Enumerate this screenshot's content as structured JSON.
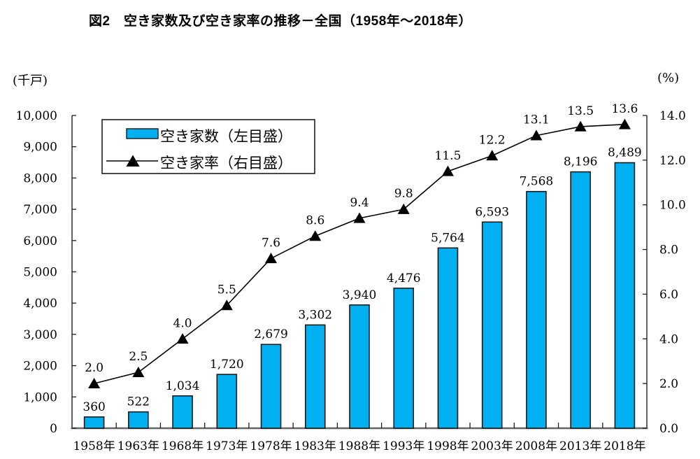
{
  "title": "図2　空き家数及び空き家率の推移－全国（1958年～2018年）",
  "left_axis": {
    "unit": "(千戸)",
    "tick_values": [
      0,
      1000,
      2000,
      3000,
      4000,
      5000,
      6000,
      7000,
      8000,
      9000,
      10000
    ],
    "tick_labels": [
      "0",
      "1,000",
      "2,000",
      "3,000",
      "4,000",
      "5,000",
      "6,000",
      "7,000",
      "8,000",
      "9,000",
      "10,000"
    ]
  },
  "right_axis": {
    "unit": "(%)",
    "tick_values": [
      0,
      2,
      4,
      6,
      8,
      10,
      12,
      14
    ],
    "tick_labels": [
      "0.0",
      "2.0",
      "4.0",
      "6.0",
      "8.0",
      "10.0",
      "12.0",
      "14.0"
    ]
  },
  "legend": {
    "items": [
      {
        "label": "空き家数（左目盛）",
        "type": "bar"
      },
      {
        "label": "空き家率（右目盛）",
        "type": "line-triangle"
      }
    ]
  },
  "colors": {
    "bar": "#00B0F0",
    "bar_border": "#1a1a1a",
    "line": "#000000"
  },
  "chart_data": {
    "type": "bar+line combo",
    "title": "図2　空き家数及び空き家率の推移－全国（1958年～2018年）",
    "categories": [
      "1958年",
      "1963年",
      "1968年",
      "1973年",
      "1978年",
      "1983年",
      "1988年",
      "1993年",
      "1998年",
      "2003年",
      "2008年",
      "2013年",
      "2018年"
    ],
    "series": [
      {
        "name": "空き家数（左目盛）",
        "type": "bar",
        "axis": "left",
        "values": [
          360,
          522,
          1034,
          1720,
          2679,
          3302,
          3940,
          4476,
          5764,
          6593,
          7568,
          8196,
          8489
        ],
        "value_labels": [
          "360",
          "522",
          "1,034",
          "1,720",
          "2,679",
          "3,302",
          "3,940",
          "4,476",
          "5,764",
          "6,593",
          "7,568",
          "8,196",
          "8,489"
        ]
      },
      {
        "name": "空き家率（右目盛）",
        "type": "line",
        "axis": "right",
        "marker": "triangle",
        "values": [
          2.0,
          2.5,
          4.0,
          5.5,
          7.6,
          8.6,
          9.4,
          9.8,
          11.5,
          12.2,
          13.1,
          13.5,
          13.6
        ],
        "value_labels": [
          "2.0",
          "2.5",
          "4.0",
          "5.5",
          "7.6",
          "8.6",
          "9.4",
          "9.8",
          "11.5",
          "12.2",
          "13.1",
          "13.5",
          "13.6"
        ]
      }
    ],
    "left_ylabel": "(千戸)",
    "right_ylabel": "(%)",
    "left_ylim": [
      0,
      10000
    ],
    "right_ylim": [
      0,
      14
    ],
    "grid": false,
    "legend_position": "top-left-inside"
  }
}
